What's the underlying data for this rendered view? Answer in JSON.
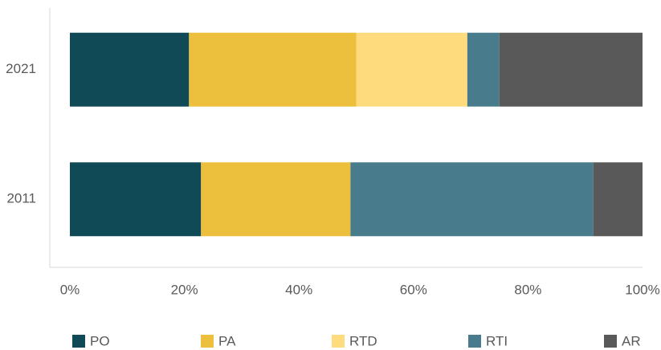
{
  "chart_data": {
    "type": "stacked_bar_horizontal",
    "categories": [
      "2021",
      "2011"
    ],
    "series": [
      {
        "name": "PO",
        "color": "#114a57",
        "values": [
          20.8,
          22.9
        ]
      },
      {
        "name": "PA",
        "color": "#ecbf3d",
        "values": [
          29.2,
          26.1
        ]
      },
      {
        "name": "RTD",
        "color": "#fedb7d",
        "values": [
          19.4,
          0
        ]
      },
      {
        "name": "RTI",
        "color": "#487b8b",
        "values": [
          5.6,
          42.4
        ]
      },
      {
        "name": "AR",
        "color": "#595959",
        "values": [
          25.0,
          8.6
        ]
      }
    ],
    "xlim": [
      0,
      100
    ],
    "xticks": [
      {
        "value": 0,
        "label": "0%"
      },
      {
        "value": 20,
        "label": "20%"
      },
      {
        "value": 40,
        "label": "40%"
      },
      {
        "value": 60,
        "label": "60%"
      },
      {
        "value": 80,
        "label": "80%"
      },
      {
        "value": 100,
        "label": "100%"
      }
    ],
    "legend": "bottom"
  }
}
